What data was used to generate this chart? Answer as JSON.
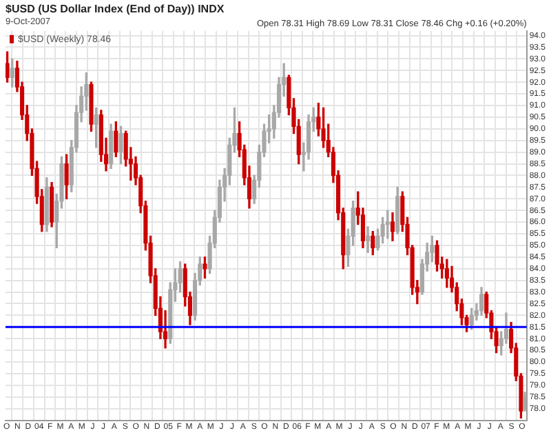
{
  "chart_data": {
    "type": "candlestick",
    "title": "$USD (US Dollar Index (End of Day)) INDX",
    "subtitle": "9-Oct-2007",
    "annotations": [
      "Open 78.31 High 78.69 Low 78.31 Close 78.46 Chg +0.16 (+0.20%)"
    ],
    "legend": "top left",
    "grid": true,
    "xlim": [
      "2003-09-28",
      "2007-10-14"
    ],
    "xticks": [
      {
        "value": "2003-10",
        "label": "O"
      },
      {
        "value": "2003-11",
        "label": "N"
      },
      {
        "value": "2003-12",
        "label": "D"
      },
      {
        "value": "2004-01",
        "label": "04"
      },
      {
        "value": "2004-02",
        "label": "F"
      },
      {
        "value": "2004-03",
        "label": "M"
      },
      {
        "value": "2004-04",
        "label": "A"
      },
      {
        "value": "2004-05",
        "label": "M"
      },
      {
        "value": "2004-06",
        "label": "J"
      },
      {
        "value": "2004-07",
        "label": "J"
      },
      {
        "value": "2004-08",
        "label": "A"
      },
      {
        "value": "2004-09",
        "label": "S"
      },
      {
        "value": "2004-10",
        "label": "O"
      },
      {
        "value": "2004-11",
        "label": "N"
      },
      {
        "value": "2004-12",
        "label": "D"
      },
      {
        "value": "2005-01",
        "label": "05"
      },
      {
        "value": "2005-02",
        "label": "F"
      },
      {
        "value": "2005-03",
        "label": "M"
      },
      {
        "value": "2005-04",
        "label": "A"
      },
      {
        "value": "2005-05",
        "label": "M"
      },
      {
        "value": "2005-06",
        "label": "J"
      },
      {
        "value": "2005-07",
        "label": "J"
      },
      {
        "value": "2005-08",
        "label": "A"
      },
      {
        "value": "2005-09",
        "label": "S"
      },
      {
        "value": "2005-10",
        "label": "O"
      },
      {
        "value": "2005-11",
        "label": "N"
      },
      {
        "value": "2005-12",
        "label": "D"
      },
      {
        "value": "2006-01",
        "label": "06"
      },
      {
        "value": "2006-02",
        "label": "F"
      },
      {
        "value": "2006-03",
        "label": "M"
      },
      {
        "value": "2006-04",
        "label": "A"
      },
      {
        "value": "2006-05",
        "label": "M"
      },
      {
        "value": "2006-06",
        "label": "J"
      },
      {
        "value": "2006-07",
        "label": "J"
      },
      {
        "value": "2006-08",
        "label": "A"
      },
      {
        "value": "2006-09",
        "label": "S"
      },
      {
        "value": "2006-10",
        "label": "O"
      },
      {
        "value": "2006-11",
        "label": "N"
      },
      {
        "value": "2006-12",
        "label": "D"
      },
      {
        "value": "2007-01",
        "label": "07"
      },
      {
        "value": "2007-02",
        "label": "F"
      },
      {
        "value": "2007-03",
        "label": "M"
      },
      {
        "value": "2007-04",
        "label": "A"
      },
      {
        "value": "2007-05",
        "label": "M"
      },
      {
        "value": "2007-06",
        "label": "J"
      },
      {
        "value": "2007-07",
        "label": "J"
      },
      {
        "value": "2007-08",
        "label": "A"
      },
      {
        "value": "2007-09",
        "label": "S"
      },
      {
        "value": "2007-10",
        "label": "O"
      }
    ],
    "ylim": [
      77.5,
      94.2
    ],
    "yticks": [
      {
        "value": 78,
        "label": "78.0"
      },
      78.5,
      {
        "value": 79,
        "label": "79.0"
      },
      79.5,
      {
        "value": 80,
        "label": "80.0"
      },
      80.5,
      {
        "value": 81,
        "label": "81.0"
      },
      81.5,
      {
        "value": 82,
        "label": "82.0"
      },
      82.5,
      {
        "value": 83,
        "label": "83.0"
      },
      83.5,
      {
        "value": 84,
        "label": "84.0"
      },
      84.5,
      {
        "value": 85,
        "label": "85.0"
      },
      85.5,
      {
        "value": 86,
        "label": "86.0"
      },
      86.5,
      {
        "value": 87,
        "label": "87.0"
      },
      87.5,
      {
        "value": 88,
        "label": "88.0"
      },
      88.5,
      {
        "value": 89,
        "label": "89.0"
      },
      89.5,
      {
        "value": 90,
        "label": "90.0"
      },
      90.5,
      {
        "value": 91,
        "label": "91.0"
      },
      91.5,
      {
        "value": 92,
        "label": "92.0"
      },
      92.5,
      {
        "value": 93,
        "label": "93.0"
      },
      93.5,
      {
        "value": 94,
        "label": "94.0"
      }
    ],
    "ref_lines": [
      {
        "axis": "y",
        "value": 81.5,
        "color": "#0000ff"
      }
    ],
    "series": [
      {
        "name": "$USD (Weekly) 78.46",
        "colors": [
          "#cc0000",
          "#a8a8a8",
          "#cc0000",
          "#cc0000",
          "#cc0000",
          "#cc0000",
          "#cc0000",
          "#cc0000",
          "#a8a8a8",
          "#cc0000",
          "#a8a8a8",
          "#a8a8a8",
          "#cc0000",
          "#a8a8a8",
          "#a8a8a8",
          "#a8a8a8",
          "#a8a8a8",
          "#cc0000",
          "#a8a8a8",
          "#cc0000",
          "#cc0000",
          "#a8a8a8",
          "#cc0000",
          "#a8a8a8",
          "#cc0000",
          "#cc0000",
          "#cc0000",
          "#cc0000",
          "#cc0000",
          "#cc0000",
          "#cc0000",
          "#cc0000",
          "#cc0000",
          "#a8a8a8",
          "#a8a8a8",
          "#a8a8a8",
          "#cc0000",
          "#cc0000",
          "#a8a8a8",
          "#a8a8a8",
          "#cc0000",
          "#a8a8a8",
          "#a8a8a8",
          "#a8a8a8",
          "#a8a8a8",
          "#a8a8a8",
          "#a8a8a8",
          "#cc0000",
          "#cc0000",
          "#cc0000",
          "#a8a8a8",
          "#a8a8a8",
          "#a8a8a8",
          "#a8a8a8",
          "#a8a8a8",
          "#a8a8a8",
          "#a8a8a8",
          "#cc0000",
          "#cc0000",
          "#cc0000",
          "#a8a8a8",
          "#a8a8a8",
          "#a8a8a8",
          "#cc0000",
          "#cc0000",
          "#cc0000",
          "#cc0000",
          "#cc0000",
          "#cc0000",
          "#a8a8a8",
          "#a8a8a8",
          "#cc0000",
          "#cc0000",
          "#a8a8a8",
          "#cc0000",
          "#a8a8a8",
          "#a8a8a8",
          "#a8a8a8",
          "#cc0000",
          "#a8a8a8",
          "#cc0000",
          "#cc0000",
          "#cc0000",
          "#cc0000",
          "#a8a8a8",
          "#a8a8a8",
          "#a8a8a8",
          "#cc0000",
          "#cc0000",
          "#cc0000",
          "#cc0000",
          "#cc0000",
          "#cc0000",
          "#cc0000",
          "#a8a8a8",
          "#a8a8a8",
          "#a8a8a8",
          "#cc0000",
          "#cc0000",
          "#cc0000",
          "#a8a8a8",
          "#a8a8a8",
          "#cc0000",
          "#cc0000",
          "#cc0000",
          "#a8a8a8"
        ],
        "x": [
          "2003-10-03",
          "2003-10-17",
          "2003-10-31",
          "2003-11-14",
          "2003-11-28",
          "2003-12-12",
          "2003-12-26",
          "2004-01-09",
          "2004-01-23",
          "2004-02-06",
          "2004-02-20",
          "2004-03-05",
          "2004-03-19",
          "2004-04-02",
          "2004-04-16",
          "2004-04-30",
          "2004-05-14",
          "2004-05-28",
          "2004-06-11",
          "2004-06-25",
          "2004-07-09",
          "2004-07-23",
          "2004-08-06",
          "2004-08-20",
          "2004-09-03",
          "2004-09-17",
          "2004-10-01",
          "2004-10-15",
          "2004-10-29",
          "2004-11-12",
          "2004-11-26",
          "2004-12-10",
          "2004-12-24",
          "2005-01-07",
          "2005-01-21",
          "2005-02-04",
          "2005-02-18",
          "2005-03-04",
          "2005-03-18",
          "2005-04-01",
          "2005-04-15",
          "2005-04-29",
          "2005-05-13",
          "2005-05-27",
          "2005-06-10",
          "2005-06-24",
          "2005-07-08",
          "2005-07-22",
          "2005-08-05",
          "2005-08-19",
          "2005-09-02",
          "2005-09-16",
          "2005-09-30",
          "2005-10-14",
          "2005-10-28",
          "2005-11-11",
          "2005-11-25",
          "2005-12-09",
          "2005-12-23",
          "2006-01-06",
          "2006-01-20",
          "2006-02-03",
          "2006-02-17",
          "2006-03-03",
          "2006-03-17",
          "2006-03-31",
          "2006-04-14",
          "2006-04-28",
          "2006-05-12",
          "2006-05-26",
          "2006-06-09",
          "2006-06-23",
          "2006-07-07",
          "2006-07-21",
          "2006-08-04",
          "2006-08-18",
          "2006-09-01",
          "2006-09-15",
          "2006-09-29",
          "2006-10-13",
          "2006-10-27",
          "2006-11-10",
          "2006-11-24",
          "2006-12-08",
          "2006-12-22",
          "2007-01-05",
          "2007-01-19",
          "2007-02-02",
          "2007-02-16",
          "2007-03-02",
          "2007-03-16",
          "2007-03-30",
          "2007-04-13",
          "2007-04-27",
          "2007-05-11",
          "2007-05-25",
          "2007-06-08",
          "2007-06-22",
          "2007-07-06",
          "2007-07-20",
          "2007-08-03",
          "2007-08-17",
          "2007-08-31",
          "2007-09-14",
          "2007-09-28",
          "2007-10-09"
        ],
        "ohlc": [
          [
            92.8,
            93.3,
            92.0,
            92.2
          ],
          [
            92.2,
            93.0,
            91.8,
            92.6
          ],
          [
            92.6,
            92.9,
            91.6,
            91.8
          ],
          [
            91.8,
            92.0,
            90.4,
            90.6
          ],
          [
            90.6,
            91.0,
            89.5,
            89.8
          ],
          [
            89.8,
            90.0,
            88.0,
            88.3
          ],
          [
            88.3,
            88.6,
            86.8,
            87.1
          ],
          [
            87.1,
            87.4,
            85.6,
            85.9
          ],
          [
            85.9,
            87.9,
            85.6,
            87.5
          ],
          [
            87.5,
            87.7,
            85.8,
            86.0
          ],
          [
            86.0,
            87.2,
            84.9,
            86.9
          ],
          [
            86.9,
            88.8,
            86.6,
            88.5
          ],
          [
            88.5,
            88.9,
            87.0,
            87.6
          ],
          [
            87.6,
            89.5,
            87.3,
            89.2
          ],
          [
            89.2,
            91.0,
            89.0,
            90.7
          ],
          [
            90.7,
            91.8,
            90.3,
            91.4
          ],
          [
            91.4,
            92.4,
            90.8,
            91.9
          ],
          [
            91.9,
            92.0,
            89.9,
            90.2
          ],
          [
            90.2,
            90.9,
            89.2,
            90.6
          ],
          [
            90.6,
            90.8,
            88.6,
            88.9
          ],
          [
            88.9,
            89.6,
            88.2,
            88.5
          ],
          [
            88.5,
            90.2,
            88.3,
            89.9
          ],
          [
            89.9,
            90.3,
            88.8,
            89.0
          ],
          [
            89.0,
            90.1,
            88.5,
            89.8
          ],
          [
            89.8,
            89.9,
            88.4,
            88.7
          ],
          [
            88.7,
            89.2,
            87.8,
            88.5
          ],
          [
            88.5,
            88.8,
            87.6,
            87.9
          ],
          [
            87.9,
            88.0,
            86.4,
            86.7
          ],
          [
            86.7,
            86.9,
            84.8,
            85.1
          ],
          [
            85.1,
            85.4,
            83.4,
            83.7
          ],
          [
            83.7,
            84.0,
            82.0,
            82.3
          ],
          [
            82.3,
            82.8,
            81.0,
            81.3
          ],
          [
            81.3,
            82.2,
            80.6,
            81.0
          ],
          [
            81.0,
            83.4,
            80.8,
            83.1
          ],
          [
            83.1,
            84.0,
            82.6,
            83.4
          ],
          [
            83.4,
            84.3,
            83.0,
            84.0
          ],
          [
            84.0,
            84.2,
            82.4,
            82.8
          ],
          [
            82.8,
            83.0,
            81.6,
            82.0
          ],
          [
            82.0,
            83.8,
            81.8,
            83.5
          ],
          [
            83.5,
            84.5,
            83.3,
            84.2
          ],
          [
            84.2,
            84.5,
            83.6,
            84.0
          ],
          [
            84.0,
            85.4,
            83.8,
            85.1
          ],
          [
            85.1,
            86.5,
            84.9,
            86.2
          ],
          [
            86.2,
            87.8,
            86.0,
            87.5
          ],
          [
            87.5,
            88.3,
            86.9,
            88.0
          ],
          [
            88.0,
            89.6,
            87.6,
            89.3
          ],
          [
            89.3,
            90.9,
            89.0,
            89.8
          ],
          [
            89.8,
            90.3,
            88.8,
            89.1
          ],
          [
            89.1,
            89.3,
            87.6,
            87.9
          ],
          [
            87.9,
            88.4,
            86.6,
            87.0
          ],
          [
            87.0,
            88.0,
            86.8,
            87.8
          ],
          [
            87.8,
            89.3,
            87.5,
            89.0
          ],
          [
            89.0,
            90.2,
            88.8,
            89.9
          ],
          [
            89.9,
            90.6,
            89.4,
            90.0
          ],
          [
            90.0,
            91.0,
            89.6,
            90.7
          ],
          [
            90.7,
            92.2,
            90.5,
            91.9
          ],
          [
            91.9,
            92.8,
            91.4,
            92.2
          ],
          [
            92.2,
            92.3,
            90.6,
            90.9
          ],
          [
            90.9,
            91.3,
            89.8,
            90.1
          ],
          [
            90.1,
            90.4,
            88.5,
            88.9
          ],
          [
            88.9,
            89.4,
            88.2,
            89.0
          ],
          [
            89.0,
            90.6,
            88.7,
            90.3
          ],
          [
            90.3,
            90.9,
            89.9,
            90.5
          ],
          [
            90.5,
            91.1,
            89.7,
            90.0
          ],
          [
            90.0,
            90.9,
            89.2,
            89.5
          ],
          [
            89.5,
            90.2,
            88.8,
            89.0
          ],
          [
            89.0,
            89.2,
            87.7,
            88.0
          ],
          [
            88.0,
            88.2,
            86.1,
            86.4
          ],
          [
            86.4,
            86.6,
            84.0,
            84.6
          ],
          [
            84.6,
            85.7,
            84.1,
            85.4
          ],
          [
            85.4,
            86.9,
            85.0,
            86.6
          ],
          [
            86.6,
            87.3,
            85.9,
            86.3
          ],
          [
            86.3,
            86.6,
            84.9,
            85.2
          ],
          [
            85.2,
            85.8,
            84.7,
            85.4
          ],
          [
            85.4,
            85.6,
            84.6,
            84.9
          ],
          [
            84.9,
            85.7,
            84.8,
            85.4
          ],
          [
            85.4,
            86.2,
            85.1,
            85.9
          ],
          [
            85.9,
            86.5,
            85.3,
            86.0
          ],
          [
            86.0,
            86.4,
            85.2,
            85.6
          ],
          [
            85.6,
            87.5,
            85.5,
            87.1
          ],
          [
            87.1,
            87.3,
            85.6,
            85.9
          ],
          [
            85.9,
            86.2,
            84.6,
            84.9
          ],
          [
            84.9,
            85.0,
            82.9,
            83.2
          ],
          [
            83.2,
            83.5,
            82.5,
            83.0
          ],
          [
            83.0,
            84.4,
            82.9,
            84.2
          ],
          [
            84.2,
            85.1,
            83.9,
            84.7
          ],
          [
            84.7,
            85.4,
            84.3,
            85.0
          ],
          [
            85.0,
            85.2,
            83.9,
            84.2
          ],
          [
            84.2,
            84.5,
            83.6,
            84.0
          ],
          [
            84.0,
            84.4,
            83.2,
            83.6
          ],
          [
            83.6,
            84.1,
            83.0,
            83.2
          ],
          [
            83.2,
            83.4,
            82.2,
            82.5
          ],
          [
            82.5,
            82.7,
            81.6,
            81.9
          ],
          [
            81.9,
            82.0,
            81.3,
            81.6
          ],
          [
            81.6,
            82.3,
            81.4,
            82.0
          ],
          [
            82.0,
            82.5,
            81.8,
            82.2
          ],
          [
            82.2,
            83.2,
            82.0,
            82.9
          ],
          [
            82.9,
            83.0,
            81.9,
            82.1
          ],
          [
            82.1,
            82.2,
            81.0,
            81.3
          ],
          [
            81.3,
            81.5,
            80.4,
            80.7
          ],
          [
            80.7,
            81.3,
            80.3,
            81.0
          ],
          [
            81.0,
            82.1,
            80.8,
            81.4
          ],
          [
            81.4,
            81.7,
            80.4,
            80.6
          ],
          [
            80.6,
            80.8,
            79.2,
            79.4
          ],
          [
            79.4,
            79.5,
            77.6,
            77.9
          ],
          [
            78.0,
            78.7,
            77.9,
            78.46
          ]
        ]
      }
    ]
  }
}
